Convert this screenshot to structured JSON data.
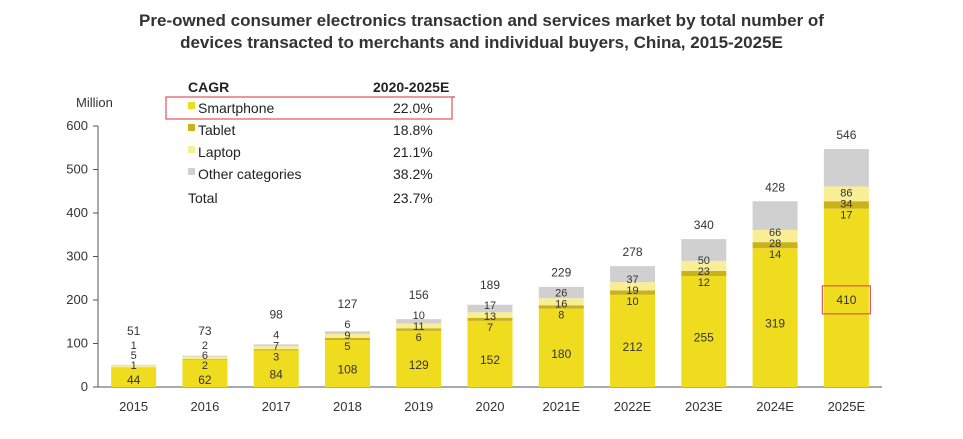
{
  "title_lines": [
    "Pre-owned consumer electronics transaction and services market by total number of",
    "devices transacted to merchants and individual buyers, China, 2015-2025E"
  ],
  "ylabel": "Million",
  "legend": {
    "header_left": "CAGR",
    "header_right": "2020-2025E",
    "rows": [
      {
        "name": "Smartphone",
        "cagr": "22.0%",
        "color": "#f0dc1e"
      },
      {
        "name": "Tablet",
        "cagr": "18.8%",
        "color": "#c9b21a"
      },
      {
        "name": "Laptop",
        "cagr": "21.1%",
        "color": "#f8ee96"
      },
      {
        "name": "Other categories",
        "cagr": "38.2%",
        "color": "#d0d0d0"
      }
    ],
    "total_label": "Total",
    "total_cagr": "23.7%"
  },
  "chart_data": {
    "type": "bar",
    "stacked": true,
    "title": "Pre-owned consumer electronics transaction and services market by total number of devices transacted to merchants and individual buyers, China, 2015-2025E",
    "xlabel": "",
    "ylabel": "Million",
    "ylim": [
      0,
      600
    ],
    "yticks": [
      0,
      100,
      200,
      300,
      400,
      500,
      600
    ],
    "categories": [
      "2015",
      "2016",
      "2017",
      "2018",
      "2019",
      "2020",
      "2021E",
      "2022E",
      "2023E",
      "2024E",
      "2025E"
    ],
    "series": [
      {
        "name": "Smartphone",
        "values": [
          44,
          62,
          84,
          108,
          129,
          152,
          180,
          212,
          255,
          319,
          410
        ]
      },
      {
        "name": "Tablet",
        "values": [
          1,
          2,
          3,
          5,
          6,
          7,
          8,
          10,
          12,
          14,
          17
        ]
      },
      {
        "name": "Laptop",
        "values": [
          5,
          6,
          7,
          9,
          11,
          13,
          16,
          19,
          23,
          28,
          34
        ]
      },
      {
        "name": "Other categories",
        "values": [
          1,
          2,
          4,
          6,
          10,
          17,
          26,
          37,
          50,
          66,
          86
        ]
      }
    ],
    "totals": [
      51,
      73,
      98,
      127,
      156,
      189,
      229,
      278,
      340,
      428,
      546
    ],
    "highlight_category": "2025E",
    "highlight_series": "Smartphone"
  }
}
